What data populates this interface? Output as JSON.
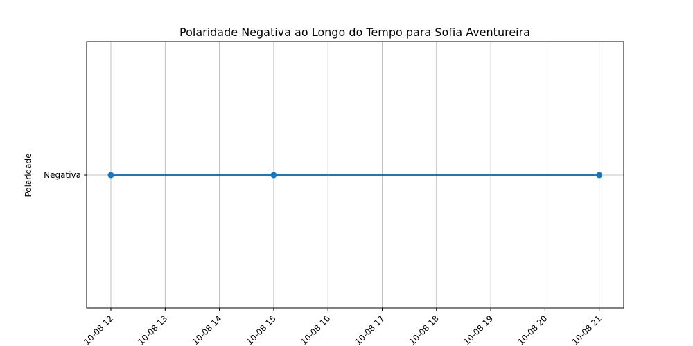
{
  "chart_data": {
    "type": "line",
    "title": "Polaridade Negativa ao Longo do Tempo para Sofia Aventureira",
    "xlabel": "",
    "ylabel": "Polaridade",
    "x_ticks": [
      "10-08 12",
      "10-08 13",
      "10-08 14",
      "10-08 15",
      "10-08 16",
      "10-08 17",
      "10-08 18",
      "10-08 19",
      "10-08 20",
      "10-08 21"
    ],
    "y_categories": [
      "Negativa"
    ],
    "series": [
      {
        "x": [
          "10-08 12",
          "10-08 15",
          "10-08 21"
        ],
        "y": [
          "Negativa",
          "Negativa",
          "Negativa"
        ]
      }
    ],
    "grid": true,
    "color": "#1f77b4",
    "marker": "circle"
  }
}
